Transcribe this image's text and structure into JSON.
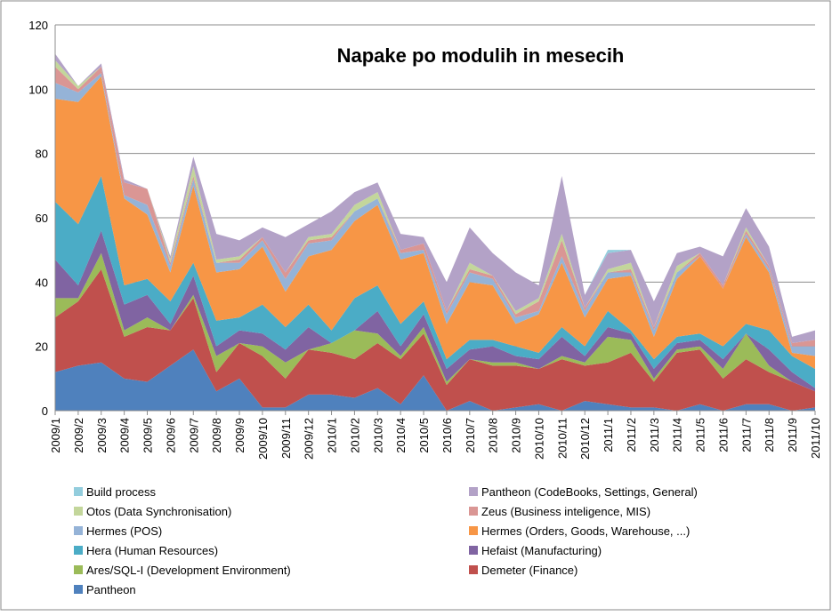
{
  "chart_data": {
    "type": "stacked_area",
    "title": "Napake po modulih in mesecih",
    "categories": [
      "2009/1",
      "2009/2",
      "2009/3",
      "2009/4",
      "2009/5",
      "2009/6",
      "2009/7",
      "2009/8",
      "2009/9",
      "2009/10",
      "2009/11",
      "2009/12",
      "2010/1",
      "2010/2",
      "2010/3",
      "2010/4",
      "2010/5",
      "2010/6",
      "2010/7",
      "2010/8",
      "2010/9",
      "2010/10",
      "2010/11",
      "2010/12",
      "2011/1",
      "2011/2",
      "2011/3",
      "2011/4",
      "2011/5",
      "2011/6",
      "2011/7",
      "2011/8",
      "2011/9",
      "2011/10"
    ],
    "series": [
      {
        "name": "Pantheon",
        "color": "#4f81bd",
        "values": [
          12,
          14,
          15,
          10,
          9,
          14,
          19,
          6,
          10,
          1,
          1,
          5,
          5,
          4,
          7,
          2,
          11,
          0,
          3,
          0,
          1,
          2,
          0,
          3,
          2,
          1,
          1,
          0,
          2,
          0,
          2,
          2,
          0,
          1
        ]
      },
      {
        "name": "Demeter (Finance)",
        "color": "#c0504d",
        "values": [
          17,
          20,
          29,
          13,
          17,
          11,
          16,
          6,
          11,
          16,
          9,
          14,
          13,
          12,
          14,
          14,
          13,
          8,
          13,
          14,
          13,
          11,
          16,
          11,
          13,
          17,
          8,
          18,
          17,
          10,
          14,
          10,
          9,
          5
        ]
      },
      {
        "name": "Ares/SQL-I (Development Environment)",
        "color": "#9bbb59",
        "values": [
          6,
          1,
          5,
          2,
          3,
          0,
          1,
          5,
          0,
          3,
          5,
          0,
          3,
          9,
          3,
          1,
          2,
          1,
          0,
          1,
          1,
          0,
          1,
          1,
          8,
          4,
          1,
          1,
          1,
          3,
          8,
          2,
          0,
          0
        ]
      },
      {
        "name": "Hefaist  (Manufacturing)",
        "color": "#8064a2",
        "values": [
          12,
          4,
          7,
          8,
          7,
          2,
          6,
          3,
          4,
          4,
          4,
          7,
          0,
          0,
          7,
          3,
          4,
          4,
          3,
          5,
          2,
          3,
          6,
          2,
          3,
          2,
          3,
          2,
          2,
          3,
          0,
          5,
          3,
          1
        ]
      },
      {
        "name": "Hera  (Human Resources)",
        "color": "#4bacc6",
        "values": [
          18,
          19,
          17,
          6,
          5,
          7,
          4,
          8,
          4,
          9,
          7,
          7,
          4,
          10,
          8,
          7,
          4,
          3,
          3,
          2,
          3,
          2,
          3,
          3,
          5,
          1,
          3,
          2,
          2,
          4,
          3,
          6,
          5,
          6
        ]
      },
      {
        "name": "Hermes (Orders, Goods, Warehouse, ...)",
        "color": "#f79646",
        "values": [
          32,
          38,
          31,
          27,
          20,
          9,
          24,
          15,
          15,
          18,
          11,
          15,
          25,
          24,
          25,
          20,
          15,
          11,
          18,
          17,
          7,
          12,
          20,
          9,
          10,
          17,
          7,
          18,
          24,
          18,
          27,
          18,
          1,
          4
        ]
      },
      {
        "name": "Hermes (POS)",
        "color": "#95b3d7",
        "values": [
          5,
          3,
          1,
          1,
          3,
          2,
          2,
          3,
          2,
          2,
          4,
          4,
          3,
          3,
          2,
          2,
          1,
          3,
          3,
          2,
          2,
          1,
          2,
          2,
          2,
          1,
          2,
          2,
          0,
          0,
          1,
          1,
          2,
          3
        ]
      },
      {
        "name": "Zeus (Business inteligence, MIS)",
        "color": "#da9694",
        "values": [
          5,
          1,
          2,
          4,
          5,
          1,
          1,
          0,
          1,
          1,
          2,
          1,
          1,
          0,
          0,
          1,
          2,
          1,
          1,
          1,
          1,
          3,
          5,
          1,
          0,
          1,
          1,
          0,
          1,
          1,
          1,
          1,
          1,
          2
        ]
      },
      {
        "name": "Otos  (Data Synchronisation)",
        "color": "#c3d69b",
        "values": [
          2,
          1,
          0,
          0,
          0,
          1,
          3,
          1,
          1,
          0,
          0,
          1,
          1,
          2,
          2,
          0,
          0,
          0,
          2,
          0,
          1,
          1,
          2,
          0,
          1,
          2,
          0,
          2,
          0,
          0,
          1,
          0,
          0,
          0
        ]
      },
      {
        "name": "Pantheon (CodeBooks, Settings, General)",
        "color": "#b3a2c7",
        "values": [
          2,
          0,
          1,
          1,
          0,
          1,
          3,
          8,
          5,
          3,
          11,
          4,
          7,
          4,
          3,
          5,
          2,
          9,
          11,
          7,
          12,
          4,
          18,
          4,
          5,
          4,
          8,
          4,
          2,
          9,
          6,
          6,
          2,
          3
        ]
      },
      {
        "name": "Build process",
        "color": "#93cddd",
        "values": [
          0,
          0,
          0,
          0,
          0,
          0,
          0,
          0,
          0,
          0,
          0,
          0,
          0,
          0,
          0,
          0,
          0,
          0,
          0,
          0,
          0,
          0,
          0,
          0,
          1,
          0,
          0,
          0,
          0,
          0,
          0,
          0,
          0,
          0
        ]
      }
    ],
    "ylim": [
      0,
      120
    ],
    "yticks": [
      0,
      20,
      40,
      60,
      80,
      100,
      120
    ],
    "grid": true
  }
}
